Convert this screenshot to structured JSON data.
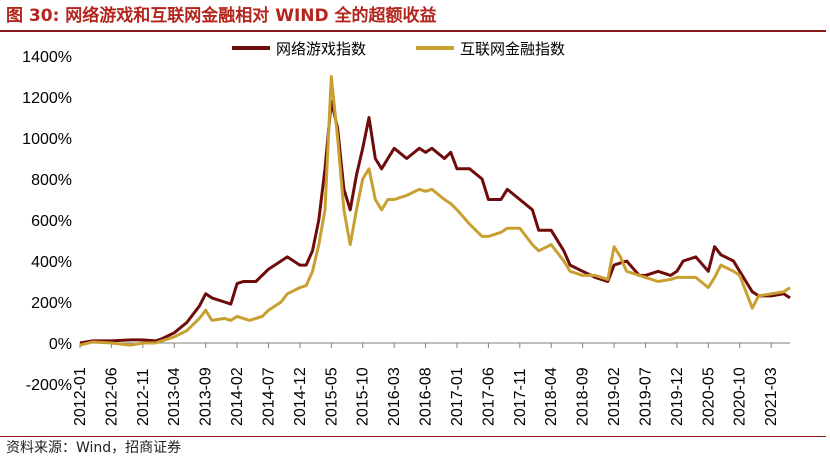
{
  "header": {
    "title": "图 30:  网络游戏和互联网金融相对 WIND 全的超额收益"
  },
  "footer": {
    "source": "资料来源：Wind，招商证券"
  },
  "colors": {
    "accent": "#b3261e",
    "series_game": "#6e0b0b",
    "series_fin": "#c8a032"
  },
  "chart_data": {
    "type": "line",
    "title": "网络游戏和互联网金融相对 WIND 全的超额收益",
    "xlabel": "",
    "ylabel": "",
    "ylim": [
      -200,
      1400
    ],
    "yticks": [
      -200,
      0,
      200,
      400,
      600,
      800,
      1000,
      1200,
      1400
    ],
    "ytick_labels": [
      "-200%",
      "0%",
      "200%",
      "400%",
      "600%",
      "800%",
      "1000%",
      "1200%",
      "1400%"
    ],
    "xticks": [
      "2012-01",
      "2012-06",
      "2012-11",
      "2013-04",
      "2013-09",
      "2014-02",
      "2014-07",
      "2014-12",
      "2015-05",
      "2015-10",
      "2016-03",
      "2016-08",
      "2017-01",
      "2017-06",
      "2017-11",
      "2018-04",
      "2018-09",
      "2019-02",
      "2019-07",
      "2019-12",
      "2020-05",
      "2020-10",
      "2021-03"
    ],
    "legend": "top-center",
    "grid": false,
    "series": [
      {
        "name": "网络游戏指数",
        "color": "#6e0b0b",
        "points": [
          [
            "2012-01",
            0
          ],
          [
            "2012-03",
            10
          ],
          [
            "2012-06",
            10
          ],
          [
            "2012-09",
            15
          ],
          [
            "2012-11",
            15
          ],
          [
            "2013-01",
            10
          ],
          [
            "2013-02",
            20
          ],
          [
            "2013-04",
            50
          ],
          [
            "2013-06",
            100
          ],
          [
            "2013-08",
            180
          ],
          [
            "2013-09",
            240
          ],
          [
            "2013-10",
            220
          ],
          [
            "2013-12",
            200
          ],
          [
            "2014-01",
            190
          ],
          [
            "2014-02",
            290
          ],
          [
            "2014-03",
            300
          ],
          [
            "2014-05",
            300
          ],
          [
            "2014-07",
            360
          ],
          [
            "2014-09",
            400
          ],
          [
            "2014-10",
            420
          ],
          [
            "2014-12",
            380
          ],
          [
            "2015-01",
            380
          ],
          [
            "2015-02",
            450
          ],
          [
            "2015-03",
            600
          ],
          [
            "2015-04",
            850
          ],
          [
            "2015-05",
            1180
          ],
          [
            "2015-06",
            1050
          ],
          [
            "2015-07",
            750
          ],
          [
            "2015-08",
            650
          ],
          [
            "2015-09",
            820
          ],
          [
            "2015-10",
            950
          ],
          [
            "2015-11",
            1100
          ],
          [
            "2015-12",
            900
          ],
          [
            "2016-01",
            850
          ],
          [
            "2016-02",
            900
          ],
          [
            "2016-03",
            950
          ],
          [
            "2016-05",
            900
          ],
          [
            "2016-07",
            950
          ],
          [
            "2016-08",
            930
          ],
          [
            "2016-09",
            950
          ],
          [
            "2016-11",
            900
          ],
          [
            "2016-12",
            930
          ],
          [
            "2017-01",
            850
          ],
          [
            "2017-03",
            850
          ],
          [
            "2017-05",
            800
          ],
          [
            "2017-06",
            700
          ],
          [
            "2017-08",
            700
          ],
          [
            "2017-09",
            750
          ],
          [
            "2017-11",
            700
          ],
          [
            "2018-01",
            650
          ],
          [
            "2018-02",
            550
          ],
          [
            "2018-04",
            550
          ],
          [
            "2018-06",
            450
          ],
          [
            "2018-07",
            380
          ],
          [
            "2018-09",
            350
          ],
          [
            "2018-11",
            320
          ],
          [
            "2019-01",
            300
          ],
          [
            "2019-02",
            380
          ],
          [
            "2019-04",
            400
          ],
          [
            "2019-06",
            330
          ],
          [
            "2019-07",
            330
          ],
          [
            "2019-09",
            350
          ],
          [
            "2019-11",
            330
          ],
          [
            "2019-12",
            350
          ],
          [
            "2020-01",
            400
          ],
          [
            "2020-03",
            420
          ],
          [
            "2020-05",
            350
          ],
          [
            "2020-06",
            470
          ],
          [
            "2020-07",
            430
          ],
          [
            "2020-09",
            400
          ],
          [
            "2020-10",
            350
          ],
          [
            "2020-12",
            250
          ],
          [
            "2021-01",
            230
          ],
          [
            "2021-03",
            230
          ],
          [
            "2021-05",
            240
          ],
          [
            "2021-06",
            220
          ]
        ]
      },
      {
        "name": "互联网金融指数",
        "color": "#c8a032",
        "points": [
          [
            "2012-01",
            -10
          ],
          [
            "2012-03",
            5
          ],
          [
            "2012-06",
            0
          ],
          [
            "2012-09",
            -10
          ],
          [
            "2012-11",
            0
          ],
          [
            "2013-01",
            0
          ],
          [
            "2013-02",
            10
          ],
          [
            "2013-04",
            30
          ],
          [
            "2013-06",
            60
          ],
          [
            "2013-08",
            120
          ],
          [
            "2013-09",
            160
          ],
          [
            "2013-10",
            110
          ],
          [
            "2013-12",
            120
          ],
          [
            "2014-01",
            110
          ],
          [
            "2014-02",
            130
          ],
          [
            "2014-04",
            110
          ],
          [
            "2014-06",
            130
          ],
          [
            "2014-07",
            160
          ],
          [
            "2014-09",
            200
          ],
          [
            "2014-10",
            240
          ],
          [
            "2014-12",
            270
          ],
          [
            "2015-01",
            280
          ],
          [
            "2015-02",
            350
          ],
          [
            "2015-03",
            480
          ],
          [
            "2015-04",
            650
          ],
          [
            "2015-05",
            1300
          ],
          [
            "2015-06",
            1000
          ],
          [
            "2015-07",
            650
          ],
          [
            "2015-08",
            480
          ],
          [
            "2015-09",
            650
          ],
          [
            "2015-10",
            800
          ],
          [
            "2015-11",
            850
          ],
          [
            "2015-12",
            700
          ],
          [
            "2016-01",
            650
          ],
          [
            "2016-02",
            700
          ],
          [
            "2016-03",
            700
          ],
          [
            "2016-05",
            720
          ],
          [
            "2016-07",
            750
          ],
          [
            "2016-08",
            740
          ],
          [
            "2016-09",
            750
          ],
          [
            "2016-11",
            700
          ],
          [
            "2016-12",
            680
          ],
          [
            "2017-01",
            650
          ],
          [
            "2017-03",
            580
          ],
          [
            "2017-05",
            520
          ],
          [
            "2017-06",
            520
          ],
          [
            "2017-08",
            540
          ],
          [
            "2017-09",
            560
          ],
          [
            "2017-11",
            560
          ],
          [
            "2018-01",
            480
          ],
          [
            "2018-02",
            450
          ],
          [
            "2018-04",
            480
          ],
          [
            "2018-06",
            400
          ],
          [
            "2018-07",
            350
          ],
          [
            "2018-09",
            330
          ],
          [
            "2018-11",
            330
          ],
          [
            "2019-01",
            310
          ],
          [
            "2019-02",
            470
          ],
          [
            "2019-03",
            420
          ],
          [
            "2019-04",
            350
          ],
          [
            "2019-06",
            330
          ],
          [
            "2019-07",
            320
          ],
          [
            "2019-09",
            300
          ],
          [
            "2019-11",
            310
          ],
          [
            "2019-12",
            320
          ],
          [
            "2020-01",
            320
          ],
          [
            "2020-03",
            320
          ],
          [
            "2020-05",
            270
          ],
          [
            "2020-06",
            320
          ],
          [
            "2020-07",
            380
          ],
          [
            "2020-09",
            350
          ],
          [
            "2020-10",
            330
          ],
          [
            "2020-12",
            170
          ],
          [
            "2021-01",
            230
          ],
          [
            "2021-03",
            240
          ],
          [
            "2021-05",
            250
          ],
          [
            "2021-06",
            270
          ]
        ]
      }
    ]
  }
}
